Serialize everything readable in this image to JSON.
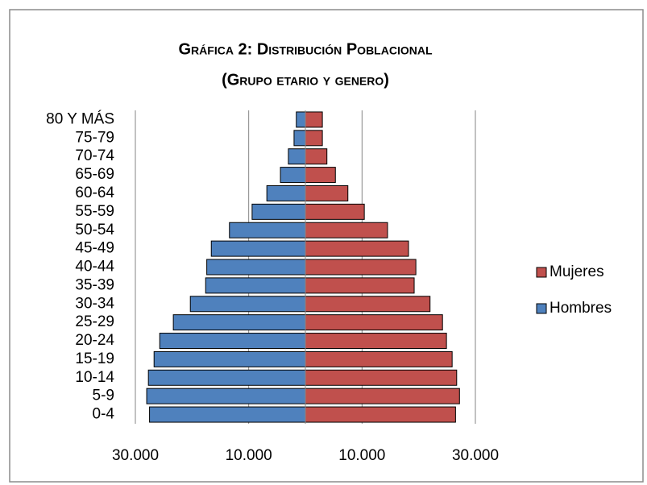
{
  "chart_data": {
    "type": "pyramid",
    "title": "Gráfica 2: Distribución Poblacional",
    "subtitle": "(Grupo etario y genero)",
    "categories": [
      "0-4",
      "5-9",
      "10-14",
      "15-19",
      "20-24",
      "25-29",
      "30-34",
      "35-39",
      "40-44",
      "45-49",
      "50-54",
      "55-59",
      "60-64",
      "65-69",
      "70-74",
      "75-79",
      "80 Y MÁS"
    ],
    "series": [
      {
        "name": "Hombres",
        "color": "#4f81bd",
        "values": [
          -27500,
          -28000,
          -27700,
          -26700,
          -25700,
          -23300,
          -20300,
          -17600,
          -17400,
          -16600,
          -13400,
          -9400,
          -6800,
          -4400,
          -3000,
          -2000,
          -1600
        ]
      },
      {
        "name": "Mujeres",
        "color": "#c0504d",
        "values": [
          26500,
          27200,
          26700,
          25900,
          24900,
          24200,
          22000,
          19200,
          19500,
          18200,
          14500,
          10400,
          7500,
          5300,
          3800,
          3000,
          3000
        ]
      }
    ],
    "xlim": [
      -30000,
      30000
    ],
    "xticks": [
      {
        "value": -30000,
        "label": "30.000"
      },
      {
        "value": -10000,
        "label": "10.000"
      },
      {
        "value": 10000,
        "label": "10.000"
      },
      {
        "value": 30000,
        "label": "30.000"
      }
    ],
    "grid": true,
    "legend": "right"
  }
}
